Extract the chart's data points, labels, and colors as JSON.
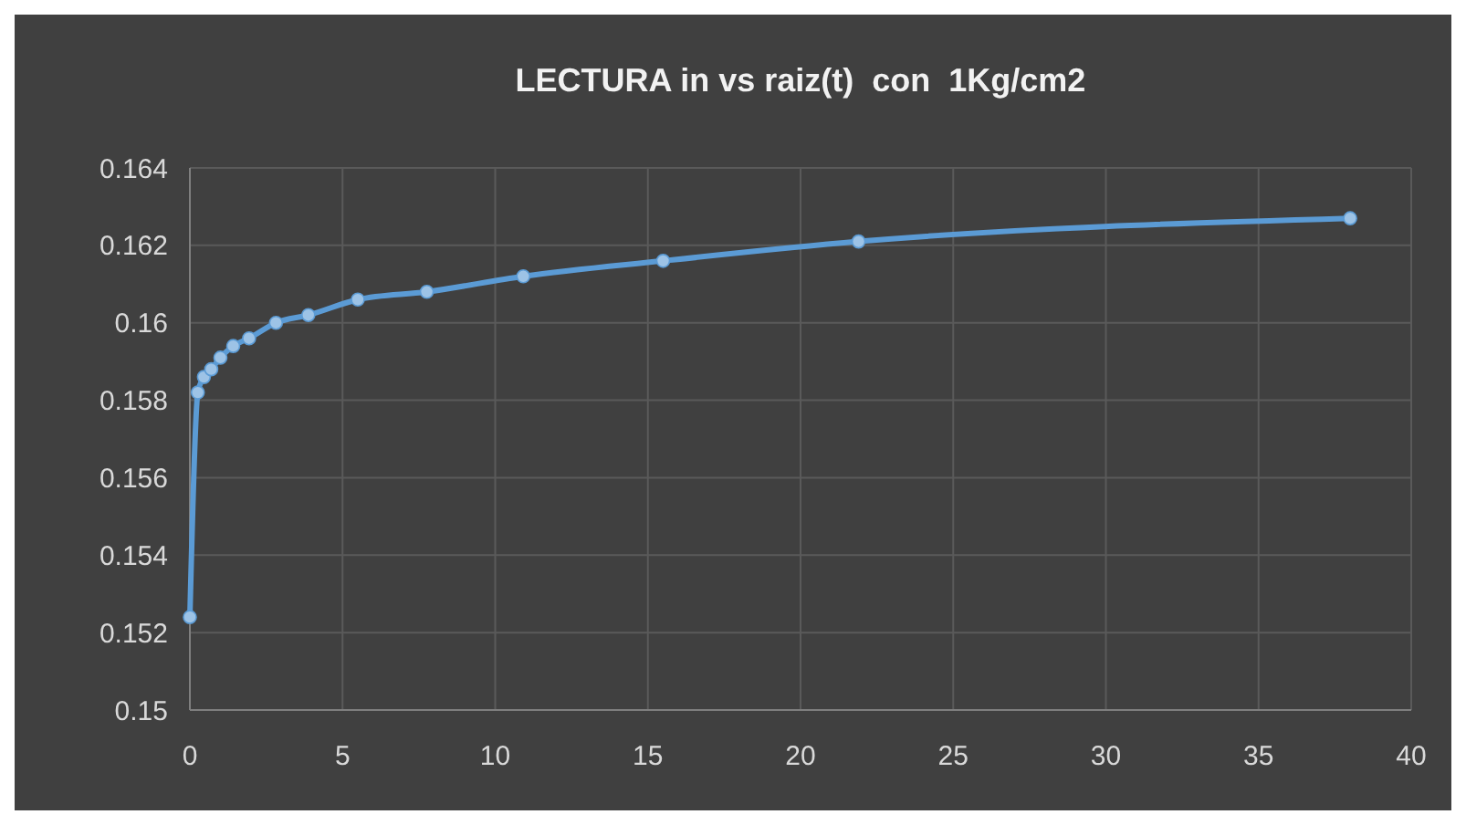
{
  "chart_data": {
    "type": "line",
    "title": "LECTURA in vs raiz(t)  con  1Kg/cm2",
    "x": [
      0,
      0.26,
      0.46,
      0.7,
      1.0,
      1.42,
      1.94,
      2.82,
      3.88,
      5.5,
      7.76,
      10.92,
      15.5,
      21.9,
      38.0
    ],
    "series": [
      {
        "color": "#5b9bd5",
        "values": [
          0.1524,
          0.1582,
          0.1586,
          0.1588,
          0.1591,
          0.1594,
          0.1596,
          0.16,
          0.1602,
          0.1606,
          0.1608,
          0.1612,
          0.1616,
          0.1621,
          0.1627
        ]
      }
    ],
    "xlim": [
      0,
      40
    ],
    "xticks": [
      0,
      5,
      10,
      15,
      20,
      25,
      30,
      35,
      40
    ],
    "ylim": [
      0.15,
      0.164
    ],
    "yticks": [
      0.15,
      0.152,
      0.154,
      0.156,
      0.158,
      0.16,
      0.162,
      0.164
    ],
    "grid": true,
    "marker": "circle",
    "line_style": "solid"
  }
}
